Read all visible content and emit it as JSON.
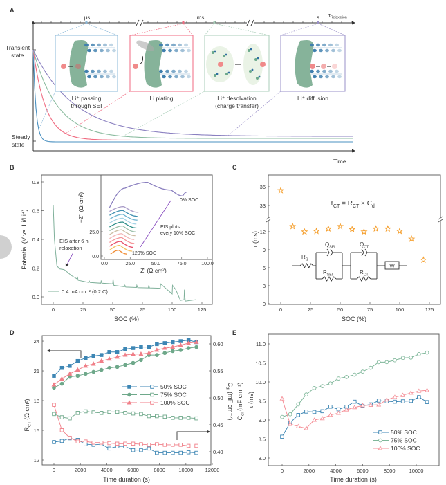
{
  "panel_labels": [
    "A",
    "B",
    "C",
    "D",
    "E"
  ],
  "colors": {
    "blue": "#3d86b4",
    "green": "#6ea88a",
    "red": "#f07080",
    "purple": "#8a7fbf",
    "orange": "#f5a030",
    "sei": "#4f8f6a",
    "li": "#f08a8a"
  },
  "chart_data": [
    {
      "panel": "A",
      "type": "line",
      "y_labels": {
        "top_line1": "Transient",
        "top_line2": "state",
        "bottom_line1": "Steady",
        "bottom_line2": "state"
      },
      "xlabel": "Time",
      "timeline": {
        "labels": [
          "μs",
          "ms",
          "s"
        ],
        "end_main": "τ",
        "end_sub": "Relaxation"
      },
      "series_colors": [
        "#4a90c0",
        "#f06a80",
        "#8cbca0",
        "#8a80c0"
      ],
      "insets": [
        {
          "caption_line1": "Li⁺ passing",
          "caption_line2": "through SEI",
          "border": "#8bb8d8"
        },
        {
          "caption_line1": "Li plating",
          "caption_line2": "",
          "border": "#f06a80"
        },
        {
          "caption_line1": "Li⁺ desolvation",
          "caption_line2": "(charge transfer)",
          "border": "#a8cdb8"
        },
        {
          "caption_line1": "Li⁺ diffusion",
          "caption_line2": "",
          "border": "#9a90c8"
        }
      ]
    },
    {
      "panel": "B",
      "type": "line",
      "xlabel": "SOC (%)",
      "ylabel": "Potential (V vs. Li/Li⁺)",
      "xlim": [
        -10,
        135
      ],
      "ylim": [
        -0.05,
        0.85
      ],
      "xticks": [
        "0",
        "25",
        "50",
        "75",
        "100",
        "125"
      ],
      "yticks": [
        "0.0",
        "0.2",
        "0.4",
        "0.6",
        "0.8"
      ],
      "legend": "0.4 mA cm⁻² (0.2 C)",
      "annotation_line1": "EIS after 6 h",
      "annotation_line2": "relaxation",
      "series": [
        {
          "name": "0.4 mA cm⁻² (0.2 C)",
          "color": "#7fb09a",
          "points": [
            [
              0,
              0.64
            ],
            [
              1,
              0.4
            ],
            [
              3,
              0.22
            ],
            [
              5,
              0.195
            ],
            [
              9,
              0.19
            ],
            [
              10,
              0.185
            ],
            [
              15,
              0.15
            ],
            [
              20,
              0.125
            ],
            [
              20.3,
              0.14
            ],
            [
              21,
              0.115
            ],
            [
              30,
              0.1
            ],
            [
              30.3,
              0.11
            ],
            [
              31,
              0.1
            ],
            [
              40,
              0.095
            ],
            [
              40.3,
              0.11
            ],
            [
              41,
              0.095
            ],
            [
              50,
              0.09
            ],
            [
              50.3,
              0.125
            ],
            [
              51,
              0.08
            ],
            [
              60,
              0.07
            ],
            [
              60.3,
              0.08
            ],
            [
              61,
              0.068
            ],
            [
              70,
              0.065
            ],
            [
              70.3,
              0.08
            ],
            [
              71,
              0.064
            ],
            [
              80,
              0.062
            ],
            [
              80.3,
              0.08
            ],
            [
              81,
              0.062
            ],
            [
              90,
              0.06
            ],
            [
              90.3,
              0.09
            ],
            [
              100,
              0.02
            ],
            [
              100.3,
              0.08
            ],
            [
              103,
              0.05
            ],
            [
              107,
              -0.025
            ],
            [
              110,
              -0.02
            ],
            [
              110.3,
              0.05
            ],
            [
              111,
              -0.03
            ],
            [
              120,
              -0.02
            ]
          ]
        }
      ],
      "inset": {
        "xlabel": "Z' (Ω cm²)",
        "ylabel": "−Z'' (Ω cm²)",
        "xticks": [
          "0.0",
          "25.0",
          "50.0",
          "75.0",
          "100.0"
        ],
        "yticks": [
          "0.0",
          "25.0"
        ],
        "label_top": "0% SOC",
        "label_bottom": "120% SOC",
        "note_line1": "EIS plots",
        "note_line2": "every 10% SOC",
        "curves": [
          {
            "soc": 0,
            "color": "#8a7fbf",
            "points": [
              [
                5,
                50
              ],
              [
                20,
                70
              ],
              [
                42,
                76
              ],
              [
                65,
                68
              ],
              [
                76,
                62
              ],
              [
                80,
                66
              ]
            ]
          },
          {
            "soc": 10,
            "color": "#a99cc8",
            "points": [
              [
                5,
                46
              ],
              [
                19,
                51
              ],
              [
                33,
                45
              ]
            ]
          },
          {
            "soc": 20,
            "color": "#3f8fb0",
            "points": [
              [
                5,
                42
              ],
              [
                18,
                47
              ],
              [
                32,
                41
              ]
            ]
          },
          {
            "soc": 30,
            "color": "#6fb4d0",
            "points": [
              [
                5,
                38
              ],
              [
                18,
                43
              ],
              [
                32,
                37
              ]
            ]
          },
          {
            "soc": 40,
            "color": "#a5d4e6",
            "points": [
              [
                5,
                34
              ],
              [
                18,
                39
              ],
              [
                31,
                33
              ]
            ]
          },
          {
            "soc": 50,
            "color": "#2e8f8a",
            "points": [
              [
                5,
                30
              ],
              [
                18,
                35
              ],
              [
                31,
                29
              ]
            ]
          },
          {
            "soc": 60,
            "color": "#9cc0aa",
            "points": [
              [
                5,
                26
              ],
              [
                18,
                31
              ],
              [
                30,
                25
              ]
            ]
          },
          {
            "soc": 70,
            "color": "#cdbda3",
            "points": [
              [
                5,
                22
              ],
              [
                17,
                27
              ],
              [
                30,
                21
              ]
            ]
          },
          {
            "soc": 80,
            "color": "#f3b5b5",
            "points": [
              [
                5,
                18
              ],
              [
                17,
                23
              ],
              [
                29,
                17
              ]
            ]
          },
          {
            "soc": 90,
            "color": "#f59498",
            "points": [
              [
                5,
                14
              ],
              [
                17,
                19
              ],
              [
                29,
                13
              ]
            ]
          },
          {
            "soc": 100,
            "color": "#e8506a",
            "points": [
              [
                5,
                10
              ],
              [
                16,
                15
              ],
              [
                28,
                9
              ]
            ]
          },
          {
            "soc": 110,
            "color": "#f5c060",
            "points": [
              [
                5,
                6
              ],
              [
                15,
                11
              ],
              [
                27,
                5
              ]
            ]
          },
          {
            "soc": 120,
            "color": "#f08a30",
            "points": [
              [
                6,
                2
              ],
              [
                14,
                6
              ],
              [
                22,
                2
              ]
            ]
          }
        ]
      }
    },
    {
      "panel": "C",
      "type": "scatter",
      "xlabel": "SOC (%)",
      "ylabel": "τ (ms)",
      "xlim": [
        -10,
        135
      ],
      "y_broken": true,
      "ylim_lower": [
        0,
        14
      ],
      "ylim_upper": [
        31,
        37.5
      ],
      "xticks": [
        "0",
        "25",
        "50",
        "75",
        "100",
        "125"
      ],
      "yticks": [
        "0",
        "3",
        "6",
        "9",
        "12",
        "33",
        "36"
      ],
      "formula": {
        "lhs_main": "τ",
        "lhs_sub": "CT",
        "eq": " = ",
        "r_main": "R",
        "r_sub": "CT",
        "times": " × ",
        "c_main": "C",
        "c_sub": "dl"
      },
      "circuit": {
        "r0": {
          "main": "R",
          "sub": "Ω"
        },
        "qsei": {
          "main": "Q",
          "sub": "SEI"
        },
        "rsei": {
          "main": "R",
          "sub": "SEI"
        },
        "qct": {
          "main": "Q",
          "sub": "CT"
        },
        "rct": {
          "main": "R",
          "sub": "CT"
        },
        "w": "W"
      },
      "marker_color": "#f5a030",
      "x": [
        0,
        10,
        20,
        30,
        40,
        50,
        60,
        70,
        80,
        90,
        100,
        110,
        120
      ],
      "y": [
        35.4,
        12.9,
        12.0,
        12.1,
        12.5,
        12.9,
        12.4,
        12.0,
        12.5,
        12.5,
        12.1,
        10.8,
        7.3
      ]
    },
    {
      "panel": "D",
      "type": "line",
      "xlabel": "Time duration (s)",
      "ylabel_left": {
        "main": "R",
        "sub": "CT",
        "rest": " (Ω cm²)"
      },
      "ylabel_right": {
        "main": "C",
        "sub": "dl",
        "rest": " (mF cm⁻²)"
      },
      "xlim": [
        -1000,
        12000
      ],
      "ylim_left": [
        11.5,
        24.3
      ],
      "ylim_right": [
        0.375,
        0.615
      ],
      "xticks": [
        "0",
        "2000",
        "4000",
        "6000",
        "8000",
        "10000",
        "12000"
      ],
      "yticks_left": [
        "12",
        "15",
        "18",
        "21",
        "24"
      ],
      "yticks_right": [
        "0.40",
        "0.45",
        "0.50",
        "0.55",
        "0.60"
      ],
      "x": [
        0,
        600,
        1200,
        1800,
        2400,
        3000,
        3600,
        4200,
        4800,
        5400,
        6000,
        6600,
        7200,
        7800,
        8400,
        9000,
        9600,
        10200,
        10800
      ],
      "series": [
        {
          "name": "50% SOC",
          "color": "#3d86b4",
          "marker": "square",
          "rct": [
            20.5,
            21.3,
            21.5,
            22.0,
            22.3,
            22.5,
            22.6,
            22.9,
            22.9,
            23.2,
            23.3,
            23.4,
            23.4,
            23.7,
            23.8,
            23.9,
            24.0,
            24.1,
            23.9
          ],
          "cdl": [
            0.418,
            0.42,
            0.425,
            0.422,
            0.414,
            0.413,
            0.414,
            0.406,
            0.41,
            0.41,
            0.403,
            0.403,
            0.406,
            0.398,
            0.398,
            0.398,
            0.398,
            0.399,
            0.398
          ]
        },
        {
          "name": "75% SOC",
          "color": "#6ea88a",
          "marker": "circle",
          "rct": [
            19.3,
            19.7,
            20.4,
            20.5,
            20.7,
            20.9,
            21.1,
            21.3,
            21.4,
            21.6,
            21.8,
            22.1,
            22.6,
            22.6,
            22.8,
            23.0,
            23.1,
            23.3,
            23.4
          ],
          "cdl": [
            0.47,
            0.464,
            0.462,
            0.472,
            0.475,
            0.473,
            0.472,
            0.474,
            0.474,
            0.472,
            0.471,
            0.47,
            0.466,
            0.466,
            0.465,
            0.463,
            0.463,
            0.463,
            0.462
          ]
        },
        {
          "name": "100% SOC",
          "color": "#f07f88",
          "marker": "triangle",
          "rct": [
            19.6,
            20.2,
            20.7,
            21.1,
            21.5,
            21.7,
            22.0,
            22.2,
            22.4,
            22.6,
            22.7,
            22.7,
            22.8,
            23.1,
            23.3,
            23.4,
            23.6,
            23.8,
            23.9
          ],
          "cdl": [
            0.487,
            0.44,
            0.426,
            0.419,
            0.419,
            0.417,
            0.417,
            0.416,
            0.415,
            0.415,
            0.415,
            0.414,
            0.413,
            0.414,
            0.413,
            0.413,
            0.413,
            0.411,
            0.411
          ]
        }
      ]
    },
    {
      "panel": "E",
      "type": "line",
      "xlabel": "Time duration (s)",
      "ylabel": "τ (ms)",
      "ylabel_extra": {
        "main": "C",
        "sub": "dl",
        "rest": " (mF cm⁻²)"
      },
      "xlim": [
        -1000,
        11200
      ],
      "ylim": [
        7.75,
        11.25
      ],
      "xticks": [
        "0",
        "2000",
        "4000",
        "6000",
        "8000",
        "10000"
      ],
      "yticks": [
        "8.0",
        "8.5",
        "9.0",
        "9.5",
        "10.0",
        "10.5",
        "11.0"
      ],
      "x": [
        0,
        600,
        1200,
        1800,
        2400,
        3000,
        3600,
        4200,
        4800,
        5400,
        6000,
        6600,
        7200,
        7800,
        8400,
        9000,
        9600,
        10200,
        10800
      ],
      "series": [
        {
          "name": "50% SOC",
          "color": "#3d86b4",
          "marker": "square",
          "values": [
            8.56,
            8.93,
            9.13,
            9.22,
            9.21,
            9.23,
            9.35,
            9.28,
            9.35,
            9.48,
            9.37,
            9.41,
            9.51,
            9.49,
            9.48,
            9.49,
            9.5,
            9.6,
            9.47
          ]
        },
        {
          "name": "75% SOC",
          "color": "#7fb79a",
          "marker": "circle",
          "values": [
            9.08,
            9.15,
            9.41,
            9.67,
            9.84,
            9.89,
            9.96,
            10.09,
            10.13,
            10.19,
            10.27,
            10.37,
            10.52,
            10.52,
            10.57,
            10.63,
            10.64,
            10.73,
            10.77
          ]
        },
        {
          "name": "100% SOC",
          "color": "#f59098",
          "marker": "triangle",
          "values": [
            9.56,
            8.89,
            8.83,
            8.78,
            9.0,
            9.04,
            9.13,
            9.18,
            9.27,
            9.33,
            9.38,
            9.39,
            9.4,
            9.53,
            9.6,
            9.65,
            9.71,
            9.76,
            9.78
          ]
        }
      ]
    }
  ]
}
